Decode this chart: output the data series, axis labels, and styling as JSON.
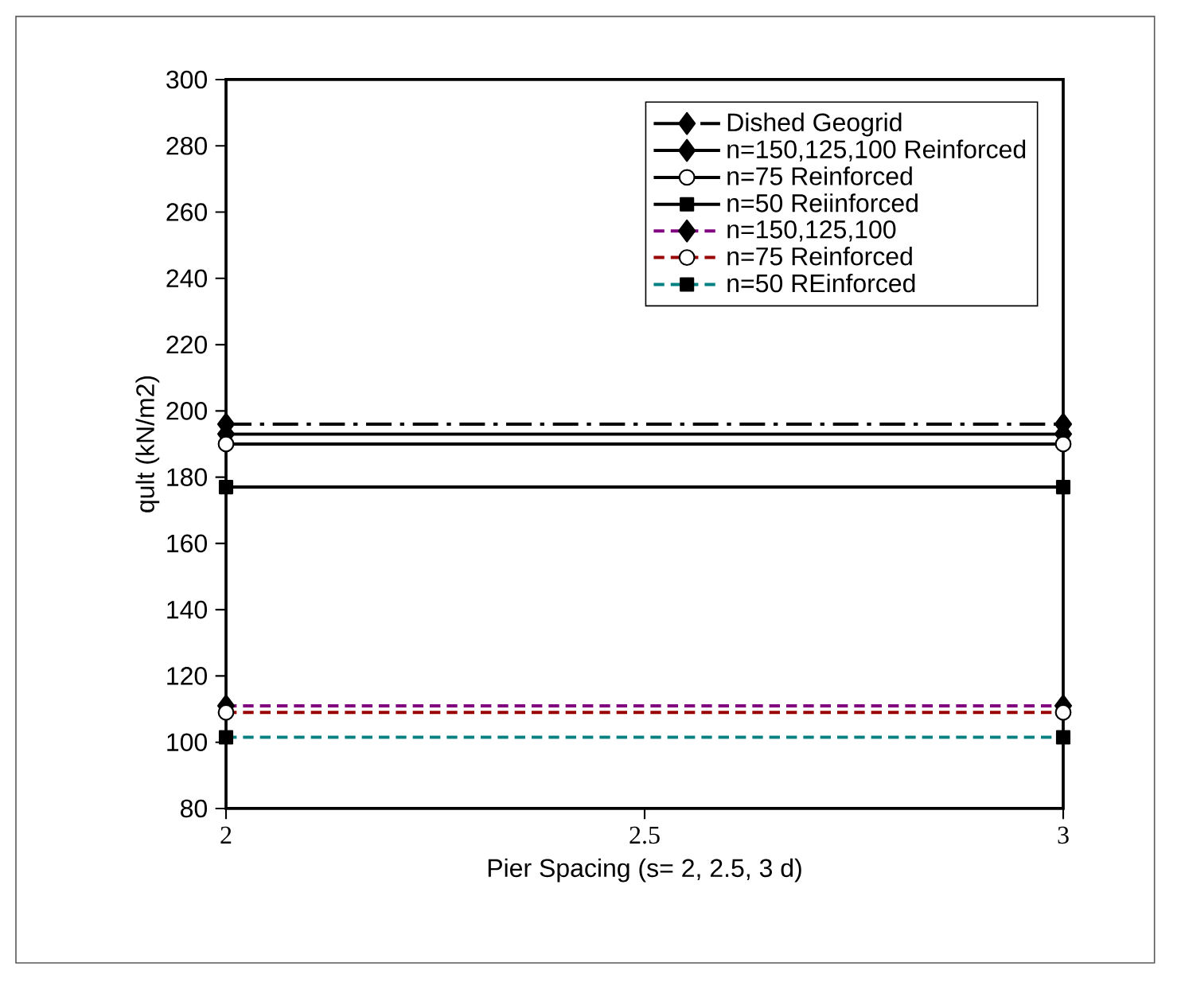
{
  "chart_data": {
    "type": "line",
    "xlabel": "Pier Spacing (s= 2, 2.5, 3 d)",
    "ylabel": "qult (kN/m2)",
    "x": [
      2,
      3
    ],
    "xlim": [
      2,
      3
    ],
    "xticks": [
      2,
      2.5,
      3
    ],
    "ylim": [
      80,
      300
    ],
    "yticks": [
      80,
      100,
      120,
      140,
      160,
      180,
      200,
      220,
      240,
      260,
      280,
      300
    ],
    "grid": false,
    "legend": "top right",
    "series": [
      {
        "name": "Dished Geogrid",
        "color": "#000000",
        "values": [
          196,
          196
        ],
        "marker": "diamond",
        "line_style": "dashdot"
      },
      {
        "name": "n=150,125,100 Reinforced",
        "color": "#000000",
        "values": [
          193,
          193
        ],
        "marker": "diamond",
        "line_style": "solid"
      },
      {
        "name": "n=75 Reinforced",
        "color": "#000000",
        "values": [
          190,
          190
        ],
        "marker": "circle",
        "line_style": "solid"
      },
      {
        "name": "n=50 Reiinforced",
        "color": "#000000",
        "values": [
          177,
          177
        ],
        "marker": "square",
        "line_style": "solid"
      },
      {
        "name": "n=150,125,100",
        "color": "#800080",
        "values": [
          111,
          111
        ],
        "marker": "diamond",
        "line_style": "dashed"
      },
      {
        "name": "n=75 Reinforced",
        "color": "#990000",
        "values": [
          109,
          109
        ],
        "marker": "circle",
        "line_style": "dashed"
      },
      {
        "name": "n=50 REinforced",
        "color": "#008080",
        "values": [
          101.5,
          101.5
        ],
        "marker": "square",
        "line_style": "dashed"
      }
    ]
  }
}
